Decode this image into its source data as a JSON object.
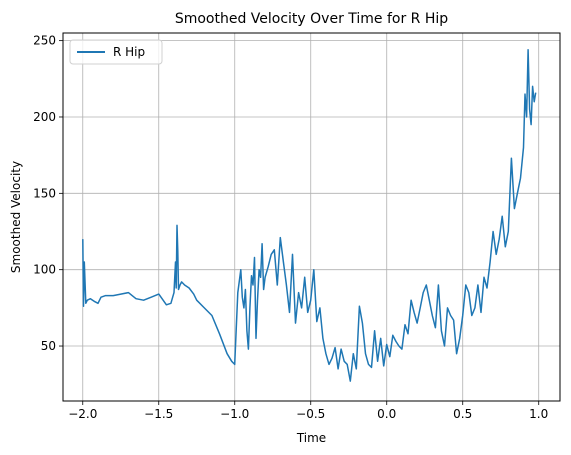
{
  "chart_data": {
    "type": "line",
    "title": "Smoothed Velocity Over Time for R Hip",
    "xlabel": "Time",
    "ylabel": "Smoothed Velocity",
    "xlim": [
      -2.13,
      1.14
    ],
    "ylim": [
      14,
      255
    ],
    "xticks": [
      -2.0,
      -1.5,
      -1.0,
      -0.5,
      0.0,
      0.5,
      1.0
    ],
    "xtick_labels": [
      "−2.0",
      "−1.5",
      "−1.0",
      "−0.5",
      "0.0",
      "0.5",
      "1.0"
    ],
    "yticks": [
      50,
      100,
      150,
      200,
      250
    ],
    "ytick_labels": [
      "50",
      "100",
      "150",
      "200",
      "250"
    ],
    "grid": true,
    "legend": "top-left",
    "colors": {
      "series": "#1f77b4",
      "grid": "#b0b0b0"
    },
    "series": [
      {
        "name": "R Hip",
        "x": [
          -2.0,
          -1.995,
          -1.99,
          -1.98,
          -1.97,
          -1.95,
          -1.92,
          -1.9,
          -1.88,
          -1.85,
          -1.82,
          -1.8,
          -1.75,
          -1.7,
          -1.65,
          -1.6,
          -1.55,
          -1.5,
          -1.45,
          -1.42,
          -1.4,
          -1.39,
          -1.385,
          -1.38,
          -1.375,
          -1.37,
          -1.36,
          -1.35,
          -1.33,
          -1.3,
          -1.27,
          -1.25,
          -1.2,
          -1.15,
          -1.1,
          -1.05,
          -1.02,
          -1.0,
          -0.98,
          -0.96,
          -0.95,
          -0.94,
          -0.93,
          -0.92,
          -0.91,
          -0.9,
          -0.89,
          -0.88,
          -0.87,
          -0.86,
          -0.85,
          -0.84,
          -0.83,
          -0.82,
          -0.81,
          -0.8,
          -0.78,
          -0.76,
          -0.74,
          -0.72,
          -0.7,
          -0.68,
          -0.66,
          -0.64,
          -0.62,
          -0.6,
          -0.58,
          -0.56,
          -0.54,
          -0.52,
          -0.5,
          -0.48,
          -0.46,
          -0.44,
          -0.42,
          -0.4,
          -0.38,
          -0.36,
          -0.34,
          -0.32,
          -0.3,
          -0.28,
          -0.26,
          -0.24,
          -0.22,
          -0.2,
          -0.18,
          -0.16,
          -0.14,
          -0.12,
          -0.1,
          -0.08,
          -0.06,
          -0.04,
          -0.02,
          0.0,
          0.02,
          0.04,
          0.06,
          0.08,
          0.1,
          0.12,
          0.14,
          0.16,
          0.18,
          0.2,
          0.22,
          0.24,
          0.26,
          0.28,
          0.3,
          0.32,
          0.34,
          0.36,
          0.38,
          0.4,
          0.42,
          0.44,
          0.46,
          0.48,
          0.5,
          0.52,
          0.54,
          0.56,
          0.58,
          0.6,
          0.62,
          0.64,
          0.66,
          0.68,
          0.7,
          0.72,
          0.74,
          0.76,
          0.78,
          0.8,
          0.82,
          0.84,
          0.86,
          0.88,
          0.9,
          0.91,
          0.92,
          0.93,
          0.94,
          0.95,
          0.96,
          0.97,
          0.98
        ],
        "y": [
          120,
          76,
          105,
          78,
          80,
          81,
          79,
          78,
          82,
          83,
          83,
          83,
          84,
          85,
          81,
          80,
          82,
          84,
          77,
          78,
          85,
          105,
          88,
          129,
          112,
          87,
          90,
          92,
          90,
          88,
          84,
          80,
          75,
          70,
          58,
          45,
          40,
          38,
          85,
          100,
          82,
          75,
          87,
          60,
          48,
          75,
          96,
          90,
          108,
          55,
          80,
          100,
          95,
          117,
          87,
          95,
          102,
          110,
          113,
          90,
          121,
          105,
          90,
          72,
          110,
          65,
          85,
          75,
          95,
          72,
          80,
          100,
          66,
          75,
          55,
          45,
          38,
          42,
          49,
          35,
          48,
          40,
          38,
          27,
          45,
          35,
          76,
          65,
          45,
          38,
          36,
          60,
          40,
          55,
          37,
          51,
          43,
          57,
          53,
          50,
          48,
          64,
          58,
          80,
          72,
          65,
          75,
          85,
          90,
          80,
          70,
          62,
          90,
          60,
          50,
          75,
          70,
          67,
          45,
          55,
          70,
          90,
          85,
          70,
          75,
          90,
          72,
          95,
          88,
          105,
          125,
          110,
          120,
          135,
          115,
          125,
          173,
          140,
          150,
          160,
          180,
          215,
          200,
          244,
          205,
          195,
          220,
          210,
          216
        ]
      }
    ]
  }
}
